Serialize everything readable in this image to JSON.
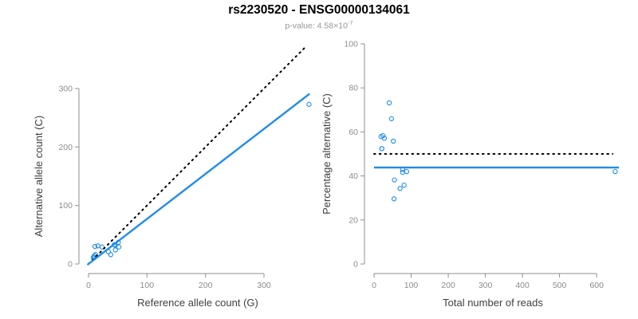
{
  "header": {
    "title": "rs2230520 - ENSG00000134061",
    "pvalue_text": "p-value: 4.58×10",
    "pvalue_exponent": "-7"
  },
  "colors": {
    "accent_blue": "#1f8ceb",
    "dotted_line": "#000000",
    "axis": "#8f8f8f",
    "tick_label": "#8c8c8c",
    "axis_title": "#3f3f3f",
    "title": "#000000",
    "subtitle": "#949494",
    "background": "#ffffff"
  },
  "chart_data": [
    {
      "type": "scatter",
      "panel": "left",
      "xlabel": "Reference allele count (G)",
      "ylabel": "Alternative allele count (C)",
      "xlim": [
        0,
        390
      ],
      "ylim": [
        0,
        375
      ],
      "xticks": [
        0,
        100,
        200,
        300
      ],
      "yticks": [
        0,
        100,
        200,
        300
      ],
      "grid": false,
      "legend": null,
      "points": [
        [
          8,
          11
        ],
        [
          10,
          11
        ],
        [
          10,
          11
        ],
        [
          10,
          14
        ],
        [
          11,
          30
        ],
        [
          12,
          16
        ],
        [
          16,
          31
        ],
        [
          23,
          29
        ],
        [
          34,
          21
        ],
        [
          38,
          16
        ],
        [
          44,
          33
        ],
        [
          45,
          32
        ],
        [
          46,
          24
        ],
        [
          51,
          37
        ],
        [
          52,
          29
        ],
        [
          377,
          273
        ]
      ],
      "lines": [
        {
          "name": "identity-line",
          "style": "dotted",
          "color": "black",
          "slope": 1,
          "intercept": 0,
          "x1": 0,
          "y1": 0,
          "x2": 373,
          "y2": 373
        },
        {
          "name": "fit-line",
          "style": "solid",
          "color": "blue",
          "slope": 0.77,
          "intercept": 0,
          "x1": -2,
          "y1": -1.5,
          "x2": 378,
          "y2": 291
        }
      ]
    },
    {
      "type": "scatter",
      "panel": "right",
      "xlabel": "Total number of reads",
      "ylabel": "Percentage alternative (C)",
      "xlim": [
        0,
        660
      ],
      "ylim": [
        0,
        100
      ],
      "xticks": [
        0,
        100,
        200,
        300,
        400,
        500,
        600
      ],
      "yticks": [
        0,
        20,
        40,
        60,
        80,
        100
      ],
      "grid": false,
      "legend": null,
      "points": [
        [
          19,
          57.9
        ],
        [
          21,
          52.4
        ],
        [
          21,
          52.4
        ],
        [
          24,
          58.3
        ],
        [
          41,
          73.2
        ],
        [
          28,
          57.1
        ],
        [
          47,
          66.0
        ],
        [
          52,
          55.8
        ],
        [
          55,
          38.2
        ],
        [
          54,
          29.6
        ],
        [
          77,
          42.9
        ],
        [
          77,
          41.6
        ],
        [
          70,
          34.3
        ],
        [
          88,
          42.0
        ],
        [
          81,
          35.8
        ],
        [
          650,
          42.0
        ]
      ],
      "lines": [
        {
          "name": "null-expectation-line",
          "style": "dotted",
          "color": "black",
          "value": 50,
          "x1": 0,
          "y1": 50,
          "x2": 643,
          "y2": 50
        },
        {
          "name": "fit-line",
          "style": "solid",
          "color": "blue",
          "value": 43.8,
          "x1": 0,
          "y1": 43.8,
          "x2": 660,
          "y2": 43.8
        }
      ]
    }
  ]
}
